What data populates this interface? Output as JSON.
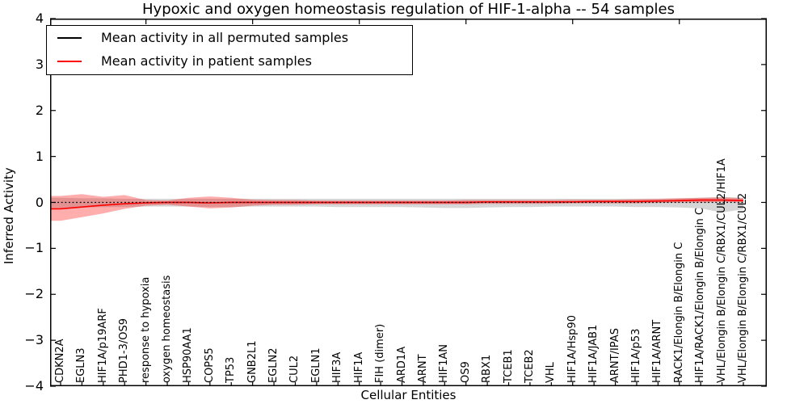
{
  "figure": {
    "title": "Hypoxic and oxygen homeostasis regulation of HIF-1-alpha -- 54 samples"
  },
  "chart_data": {
    "type": "line",
    "title": "Hypoxic and oxygen homeostasis regulation of HIF-1-alpha -- 54 samples",
    "xlabel": "Cellular Entities",
    "ylabel": "Inferred Activity",
    "ylim": [
      -4,
      4
    ],
    "yticks": [
      "4",
      "3",
      "2",
      "1",
      "0",
      "−1",
      "−2",
      "−3",
      "−4"
    ],
    "ytick_values": [
      4,
      3,
      2,
      1,
      0,
      -1,
      -2,
      -3,
      -4
    ],
    "grid": false,
    "legend_position": "upper left",
    "legend": [
      {
        "label": "Mean activity in all permuted samples",
        "color": "#000000"
      },
      {
        "label": "Mean activity in patient samples",
        "color": "#ff0000"
      }
    ],
    "categories": [
      "CDKN2A",
      "EGLN3",
      "HIF1A/p19ARF",
      "PHD1-3/OS9",
      "response to hypoxia",
      "oxygen homeostasis",
      "HSP90AA1",
      "COPS5",
      "TP53",
      "GNB2L1",
      "EGLN2",
      "CUL2",
      "EGLN1",
      "HIF3A",
      "HIF1A",
      "FIH (dimer)",
      "ARD1A",
      "ARNT",
      "HIF1AN",
      "OS9",
      "RBX1",
      "TCEB1",
      "TCEB2",
      "VHL",
      "HIF1A/Hsp90",
      "HIF1A/JAB1",
      "ARNT/IPAS",
      "HIF1A/p53",
      "HIF1A/ARNT",
      "RACK1/Elongin B/Elongin C",
      "HIF1A/RACK1/Elongin B/Elongin C",
      "VHL/Elongin B/Elongin C/RBX1/CUL2/HIF1A",
      "VHL/Elongin B/Elongin C/RBX1/CUL2"
    ],
    "series": [
      {
        "name": "Mean activity in all permuted samples",
        "color": "#000000",
        "line_style": "dotted",
        "values": [
          0,
          0,
          0,
          0,
          0,
          0,
          0,
          0,
          0,
          0,
          0,
          0,
          0,
          0,
          0,
          0,
          0,
          0,
          0,
          0,
          0,
          0,
          0,
          0,
          0,
          0,
          0,
          0,
          0,
          0,
          0,
          0,
          0
        ]
      },
      {
        "name": "Mean activity in patient samples",
        "color": "#ff0000",
        "line_style": "solid",
        "values": [
          -0.14,
          -0.1,
          -0.06,
          -0.03,
          -0.01,
          0,
          0,
          -0.01,
          0,
          0,
          0,
          0,
          0,
          0,
          0,
          0,
          0,
          0,
          0,
          0,
          0.01,
          0.01,
          0.01,
          0.01,
          0.01,
          0.02,
          0.02,
          0.02,
          0.03,
          0.04,
          0.05,
          0.05,
          0.04
        ]
      }
    ],
    "bands": [
      {
        "name": "permuted samples range",
        "color": "#000000",
        "opacity": 0.16,
        "upper": [
          0.1,
          0.09,
          0.09,
          0.08,
          0.08,
          0.08,
          0.08,
          0.08,
          0.08,
          0.08,
          0.08,
          0.08,
          0.08,
          0.08,
          0.08,
          0.08,
          0.08,
          0.08,
          0.08,
          0.08,
          0.08,
          0.08,
          0.08,
          0.08,
          0.08,
          0.08,
          0.08,
          0.08,
          0.08,
          0.09,
          0.1,
          0.12,
          0.1
        ],
        "lower": [
          -0.12,
          -0.11,
          -0.1,
          -0.1,
          -0.09,
          -0.09,
          -0.09,
          -0.1,
          -0.1,
          -0.09,
          -0.09,
          -0.09,
          -0.09,
          -0.1,
          -0.1,
          -0.1,
          -0.1,
          -0.11,
          -0.12,
          -0.12,
          -0.11,
          -0.1,
          -0.1,
          -0.09,
          -0.09,
          -0.09,
          -0.09,
          -0.1,
          -0.1,
          -0.11,
          -0.13,
          -0.22,
          -0.15
        ]
      },
      {
        "name": "patient samples range",
        "color": "#ff0000",
        "opacity": 0.32,
        "upper": [
          0.14,
          0.18,
          0.12,
          0.16,
          0.05,
          0.04,
          0.1,
          0.13,
          0.1,
          0.06,
          0.05,
          0.05,
          0.04,
          0.04,
          0.04,
          0.04,
          0.04,
          0.04,
          0.04,
          0.05,
          0.05,
          0.05,
          0.05,
          0.05,
          0.06,
          0.06,
          0.06,
          0.07,
          0.08,
          0.09,
          0.1,
          0.11,
          0.09
        ],
        "lower": [
          -0.4,
          -0.32,
          -0.24,
          -0.14,
          -0.07,
          -0.05,
          -0.09,
          -0.13,
          -0.11,
          -0.07,
          -0.05,
          -0.05,
          -0.04,
          -0.04,
          -0.04,
          -0.04,
          -0.04,
          -0.04,
          -0.04,
          -0.04,
          -0.03,
          -0.03,
          -0.03,
          -0.03,
          -0.02,
          -0.02,
          -0.02,
          -0.02,
          -0.01,
          0.0,
          0.0,
          0.01,
          0.0
        ]
      }
    ],
    "xtick_top_indices": [
      4,
      9,
      14,
      19,
      24,
      29
    ]
  }
}
